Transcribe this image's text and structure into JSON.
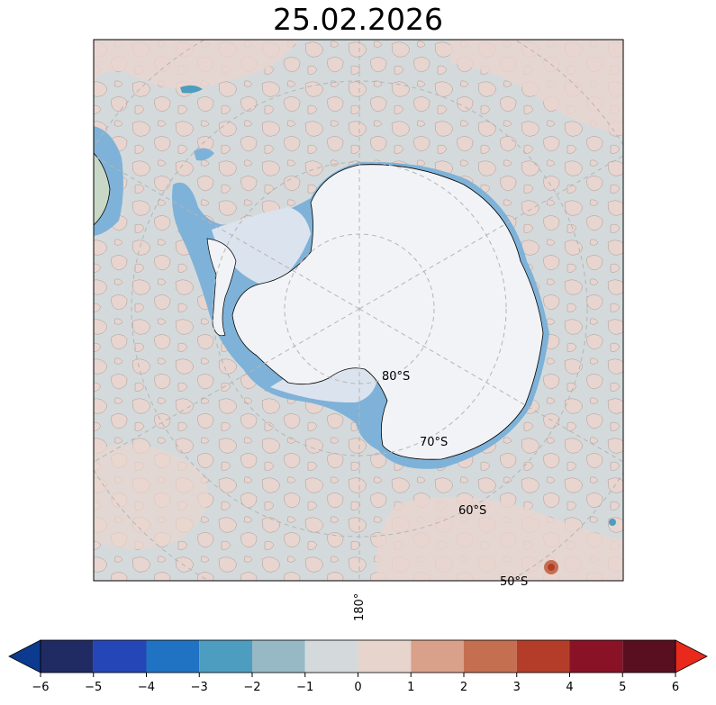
{
  "title": "25.02.2026",
  "map": {
    "projection": "south-polar-stereographic",
    "lat_labels": [
      "80°S",
      "70°S",
      "60°S",
      "50°S"
    ],
    "lon_label": "180°",
    "colors": {
      "ocean_base": "#d4dadb",
      "positive_anom": "#e8d5cf",
      "sea_ice": "#7fb2d8",
      "ice_sheet": "#f1f3f6",
      "ice_shelf": "#dbe3ee",
      "graticule": "#b5b5b5"
    }
  },
  "colorbar": {
    "ticks": [
      "−6",
      "−5",
      "−4",
      "−3",
      "−2",
      "−1",
      "0",
      "1",
      "2",
      "3",
      "4",
      "5",
      "6"
    ],
    "extend_low_color": "#0b3a8f",
    "extend_high_color": "#e8291c",
    "bins": [
      {
        "from": -6,
        "to": -5,
        "color": "#202a63"
      },
      {
        "from": -5,
        "to": -4,
        "color": "#2546b6"
      },
      {
        "from": -4,
        "to": -3,
        "color": "#1f73c2"
      },
      {
        "from": -3,
        "to": -2,
        "color": "#4d9dc0"
      },
      {
        "from": -2,
        "to": -1,
        "color": "#97b9c5"
      },
      {
        "from": -1,
        "to": 0,
        "color": "#d4d9db"
      },
      {
        "from": 0,
        "to": 1,
        "color": "#e6d4cd"
      },
      {
        "from": 1,
        "to": 2,
        "color": "#d9a08a"
      },
      {
        "from": 2,
        "to": 3,
        "color": "#c56f51"
      },
      {
        "from": 3,
        "to": 4,
        "color": "#b33d29"
      },
      {
        "from": 4,
        "to": 5,
        "color": "#891226"
      },
      {
        "from": 5,
        "to": 6,
        "color": "#5a0f21"
      }
    ]
  }
}
